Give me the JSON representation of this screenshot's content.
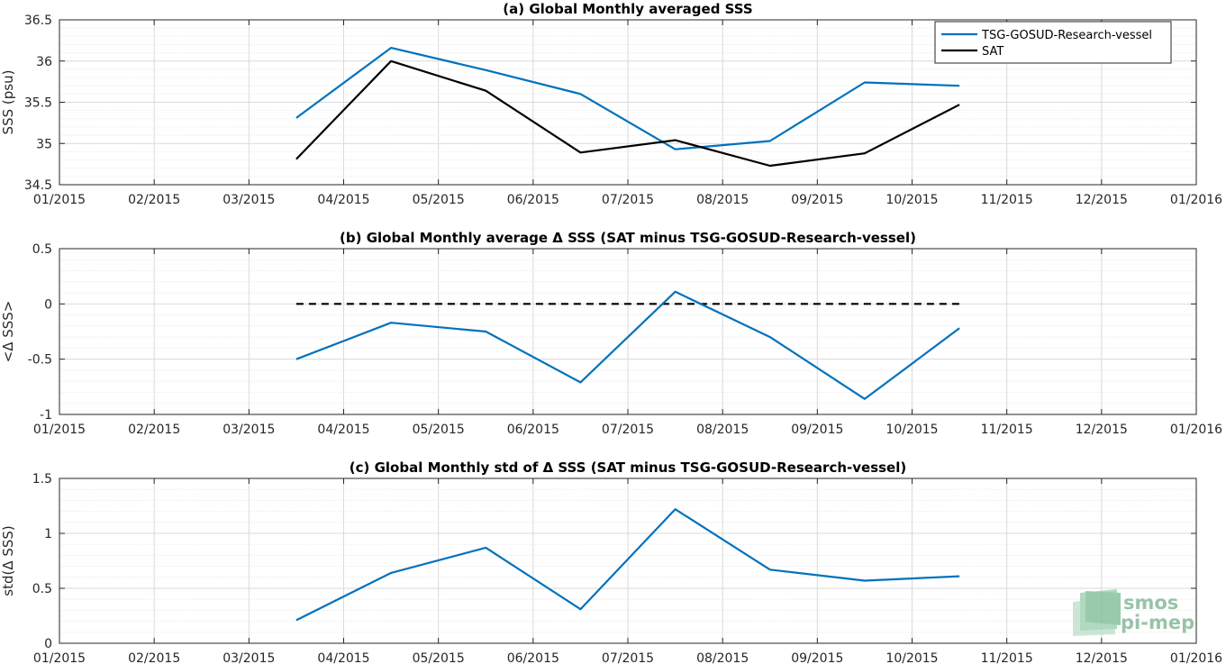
{
  "chart_data": [
    {
      "type": "line",
      "title": "(a) Global Monthly averaged SSS",
      "ylabel": "SSS (psu)",
      "xlabel": "",
      "x_ticks": [
        "01/2015",
        "02/2015",
        "03/2015",
        "04/2015",
        "05/2015",
        "06/2015",
        "07/2015",
        "08/2015",
        "09/2015",
        "10/2015",
        "11/2015",
        "12/2015",
        "01/2016"
      ],
      "xlim": [
        0,
        12
      ],
      "ylim": [
        34.5,
        36.5
      ],
      "y_ticks": [
        34.5,
        35,
        35.5,
        36,
        36.5
      ],
      "y_tick_labels": [
        "34.5",
        "35",
        "35.5",
        "36",
        "36.5"
      ],
      "grid": true,
      "minor_grid": true,
      "legend_position": "top-right",
      "series": [
        {
          "name": "TSG-GOSUD-Research-vessel",
          "color": "#0072bd",
          "dash": false,
          "x": [
            2.5,
            3.5,
            4.5,
            5.5,
            6.5,
            7.5,
            8.5,
            9.5
          ],
          "y": [
            35.31,
            36.16,
            35.89,
            35.6,
            34.93,
            35.03,
            35.74,
            35.7
          ]
        },
        {
          "name": "SAT",
          "color": "#000000",
          "dash": false,
          "x": [
            2.5,
            3.5,
            4.5,
            5.5,
            6.5,
            7.5,
            8.5,
            9.5
          ],
          "y": [
            34.81,
            36.0,
            35.64,
            34.89,
            35.04,
            34.73,
            34.88,
            35.47
          ]
        }
      ]
    },
    {
      "type": "line",
      "title": "(b) Global Monthly average Δ SSS (SAT minus TSG-GOSUD-Research-vessel)",
      "ylabel": "<Δ SSS>",
      "xlabel": "",
      "x_ticks": [
        "01/2015",
        "02/2015",
        "03/2015",
        "04/2015",
        "05/2015",
        "06/2015",
        "07/2015",
        "08/2015",
        "09/2015",
        "10/2015",
        "11/2015",
        "12/2015",
        "01/2016"
      ],
      "xlim": [
        0,
        12
      ],
      "ylim": [
        -1,
        0.5
      ],
      "y_ticks": [
        -1,
        -0.5,
        0,
        0.5
      ],
      "y_tick_labels": [
        "-1",
        "-0.5",
        "0",
        "0.5"
      ],
      "grid": true,
      "minor_grid": true,
      "series": [
        {
          "color": "#000000",
          "dash": true,
          "x": [
            2.5,
            9.5
          ],
          "y": [
            0,
            0
          ]
        },
        {
          "color": "#0072bd",
          "dash": false,
          "x": [
            2.5,
            3.5,
            4.5,
            5.5,
            6.5,
            7.5,
            8.5,
            9.5
          ],
          "y": [
            -0.5,
            -0.17,
            -0.25,
            -0.71,
            0.11,
            -0.3,
            -0.86,
            -0.22
          ]
        }
      ]
    },
    {
      "type": "line",
      "title": "(c) Global Monthly std of Δ SSS (SAT minus TSG-GOSUD-Research-vessel)",
      "ylabel": "std(Δ SSS)",
      "xlabel": "",
      "x_ticks": [
        "01/2015",
        "02/2015",
        "03/2015",
        "04/2015",
        "05/2015",
        "06/2015",
        "07/2015",
        "08/2015",
        "09/2015",
        "10/2015",
        "11/2015",
        "12/2015",
        "01/2016"
      ],
      "xlim": [
        0,
        12
      ],
      "ylim": [
        0,
        1.5
      ],
      "y_ticks": [
        0,
        0.5,
        1,
        1.5
      ],
      "y_tick_labels": [
        "0",
        "0.5",
        "1",
        "1.5"
      ],
      "grid": true,
      "minor_grid": true,
      "series": [
        {
          "color": "#0072bd",
          "dash": false,
          "x": [
            2.5,
            3.5,
            4.5,
            5.5,
            6.5,
            7.5,
            8.5,
            9.5
          ],
          "y": [
            0.21,
            0.64,
            0.87,
            0.31,
            1.22,
            0.67,
            0.57,
            0.61
          ]
        }
      ]
    }
  ],
  "logo": {
    "line1": "smos",
    "line2": "pi-mep"
  }
}
